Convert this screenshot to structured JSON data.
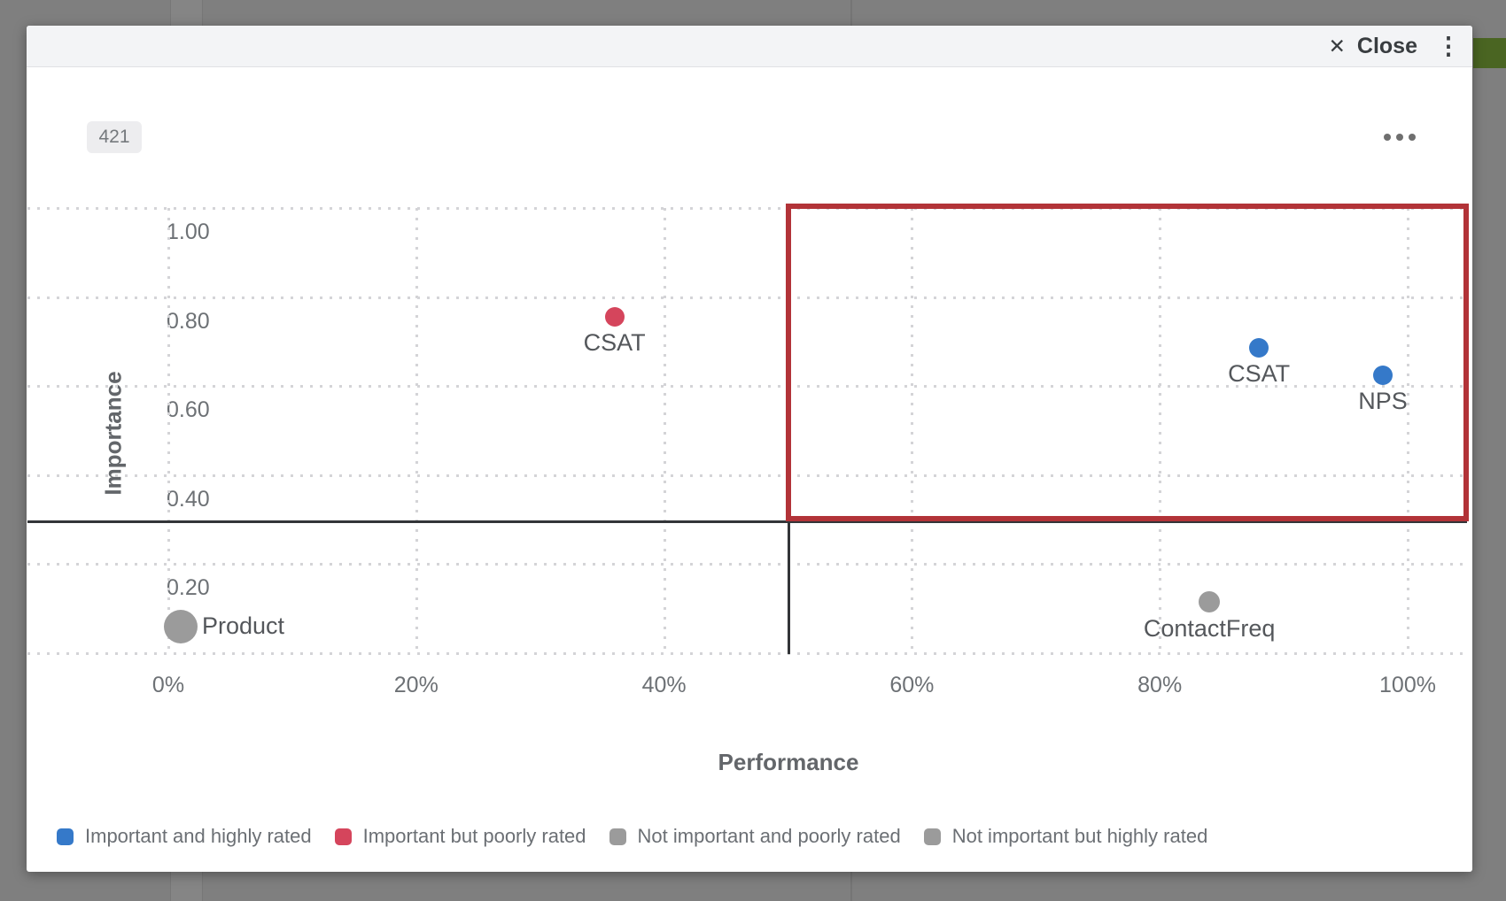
{
  "dialog": {
    "close_label": "Close",
    "close_icon": "✕",
    "kebab_icon": "⋮",
    "badge": "421"
  },
  "chart_data": {
    "type": "scatter",
    "xlabel": "Performance",
    "ylabel": "Importance",
    "x_ticks": [
      {
        "label": "0%",
        "value": 0
      },
      {
        "label": "20%",
        "value": 20
      },
      {
        "label": "40%",
        "value": 40
      },
      {
        "label": "60%",
        "value": 60
      },
      {
        "label": "80%",
        "value": 80
      },
      {
        "label": "100%",
        "value": 100
      }
    ],
    "y_ticks": [
      {
        "label": "1.00",
        "value": 1.0
      },
      {
        "label": "0.80",
        "value": 0.8
      },
      {
        "label": "0.60",
        "value": 0.6
      },
      {
        "label": "0.40",
        "value": 0.4
      },
      {
        "label": "0.20",
        "value": 0.2
      },
      {
        "label": "",
        "value": 0.0
      }
    ],
    "x_range": [
      0,
      100
    ],
    "y_range": [
      0,
      1.0
    ],
    "grid": "dotted",
    "quadrant_divider": {
      "x": 50,
      "y": 0.296
    },
    "highlight_box": {
      "x1": 50,
      "x2": 104.7,
      "y1": 0.302,
      "y2": 1.004,
      "color": "#b23338"
    },
    "points": [
      {
        "label": "CSAT",
        "x": 36,
        "y": 0.755,
        "r": 11,
        "color": "#d5455c",
        "label_pos": "below",
        "series": "Important but poorly rated"
      },
      {
        "label": "CSAT",
        "x": 88,
        "y": 0.685,
        "r": 11,
        "color": "#3579c9",
        "label_pos": "below",
        "series": "Important and highly rated"
      },
      {
        "label": "NPS",
        "x": 98,
        "y": 0.625,
        "r": 11,
        "color": "#3579c9",
        "label_pos": "below",
        "series": "Important and highly rated"
      },
      {
        "label": "ContactFreq",
        "x": 84,
        "y": 0.115,
        "r": 12,
        "color": "#9b9b9b",
        "label_pos": "below",
        "series": "Not important and poorly rated"
      },
      {
        "label": "Product",
        "x": 1,
        "y": 0.06,
        "r": 19,
        "color": "#9b9b9b",
        "label_pos": "right",
        "series": "Not important and poorly rated"
      }
    ],
    "legend": [
      {
        "label": "Important and highly rated",
        "color": "#3579c9"
      },
      {
        "label": "Important but poorly rated",
        "color": "#d5455c"
      },
      {
        "label": "Not important and poorly rated",
        "color": "#9b9b9b"
      },
      {
        "label": "Not important but highly rated",
        "color": "#9b9b9b"
      }
    ]
  }
}
